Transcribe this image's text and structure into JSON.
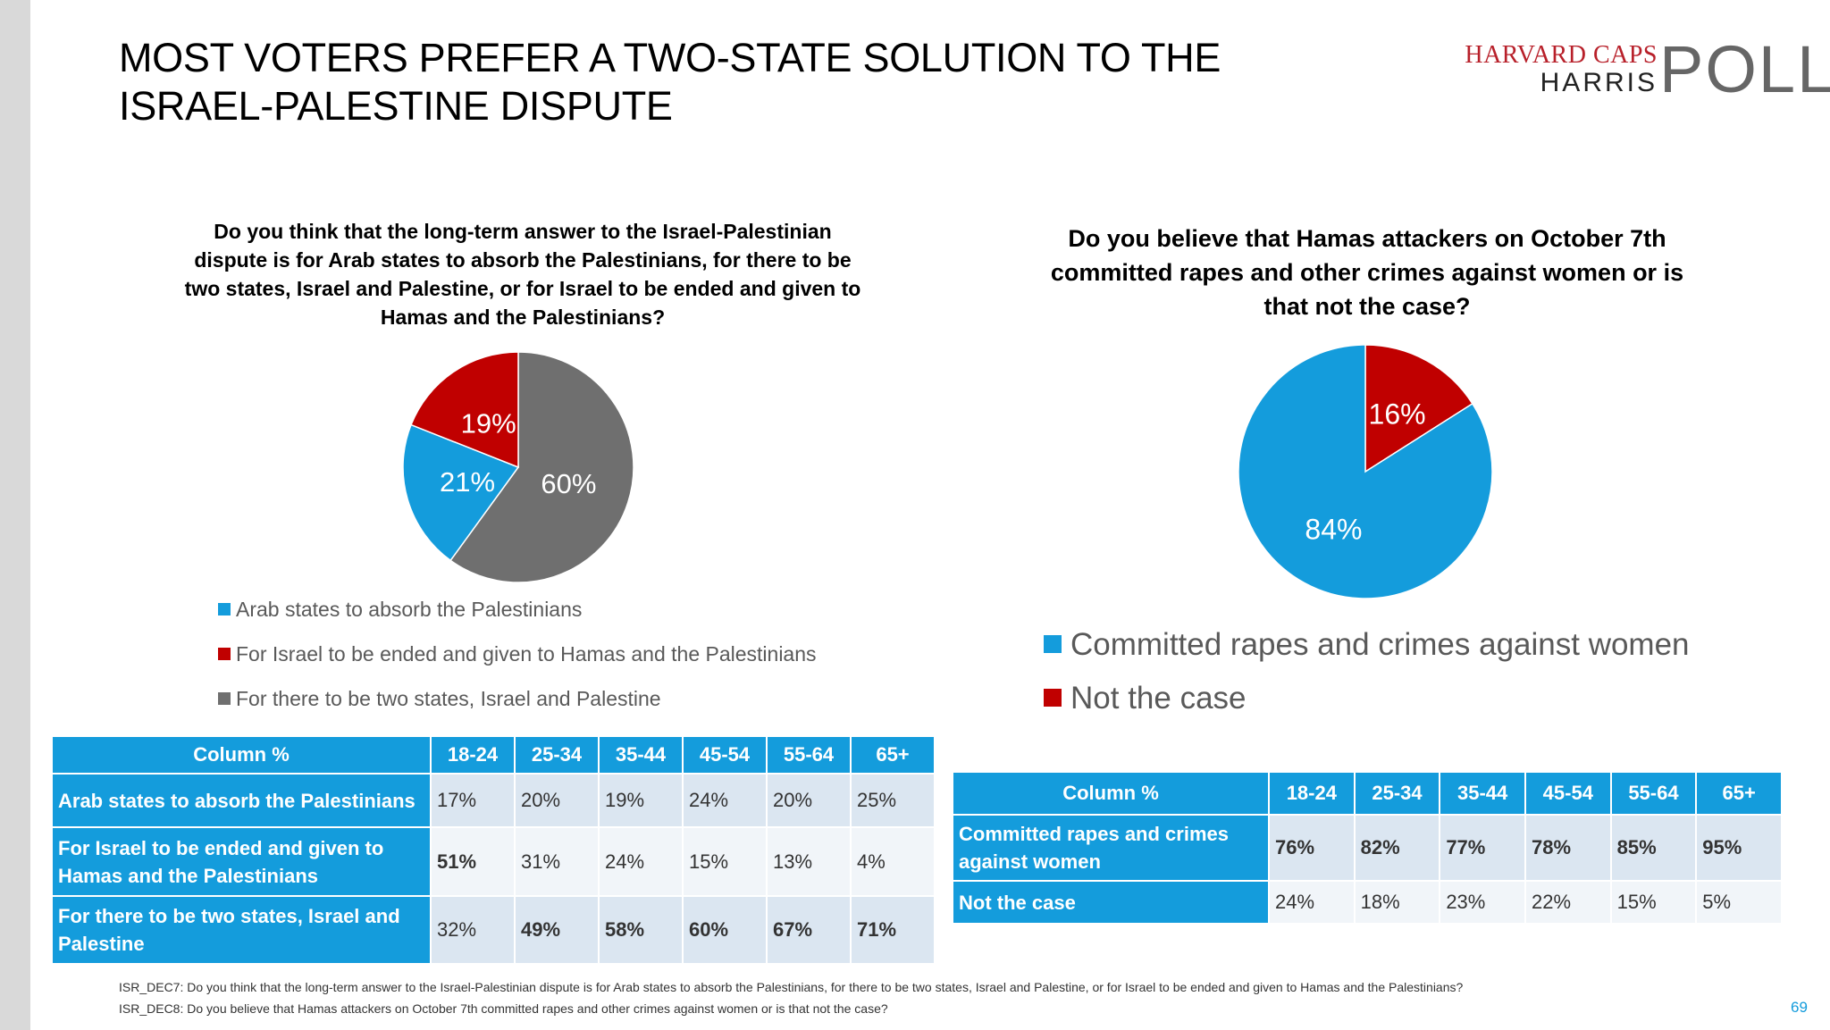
{
  "title": "MOST VOTERS PREFER A TWO-STATE SOLUTION TO THE ISRAEL-PALESTINE DISPUTE",
  "logo": {
    "line1": "HARVARD CAPS",
    "line2": "HARRIS",
    "line3": "POLL"
  },
  "colors": {
    "blue": "#149cdc",
    "red": "#c00000",
    "gray": "#6f6f6f"
  },
  "chart_data": [
    {
      "type": "pie",
      "title": "Do you think that the long-term answer to the Israel-Palestinian dispute is for Arab states to absorb the Palestinians, for there to be two states, Israel and Palestine, or for Israel to be ended and given to Hamas and the Palestinians?",
      "legend_position": "bottom",
      "slices": [
        {
          "label": "For there to be two states, Israel and Palestine",
          "value": 60,
          "display": "60%",
          "color": "#6f6f6f"
        },
        {
          "label": "Arab states to absorb the Palestinians",
          "value": 21,
          "display": "21%",
          "color": "#149cdc"
        },
        {
          "label": "For Israel to be ended and given to Hamas and the Palestinians",
          "value": 19,
          "display": "19%",
          "color": "#c00000"
        }
      ],
      "legend": [
        {
          "label": "Arab states to absorb the Palestinians",
          "color": "#149cdc"
        },
        {
          "label": "For Israel to be ended and given to Hamas and the Palestinians",
          "color": "#c00000"
        },
        {
          "label": "For there to be two states, Israel and Palestine",
          "color": "#6f6f6f"
        }
      ]
    },
    {
      "type": "pie",
      "title": "Do you believe that Hamas attackers on October 7th committed rapes and other crimes against women or is that not the case?",
      "legend_position": "bottom",
      "slices": [
        {
          "label": "Not the case",
          "value": 16,
          "display": "16%",
          "color": "#c00000"
        },
        {
          "label": "Committed rapes and crimes against women",
          "value": 84,
          "display": "84%",
          "color": "#149cdc"
        }
      ],
      "legend": [
        {
          "label": "Committed rapes and crimes against women",
          "color": "#149cdc"
        },
        {
          "label": "Not the case",
          "color": "#c00000"
        }
      ]
    },
    {
      "type": "table",
      "columns": [
        "Column %",
        "18-24",
        "25-34",
        "35-44",
        "45-54",
        "55-64",
        "65+"
      ],
      "rows": [
        {
          "label": "Arab states to absorb the Palestinians",
          "values": [
            "17%",
            "20%",
            "19%",
            "24%",
            "20%",
            "25%"
          ],
          "bold": [
            false,
            false,
            false,
            false,
            false,
            false
          ]
        },
        {
          "label": "For Israel to be ended and given to Hamas and the Palestinians",
          "values": [
            "51%",
            "31%",
            "24%",
            "15%",
            "13%",
            "4%"
          ],
          "bold": [
            true,
            false,
            false,
            false,
            false,
            false
          ]
        },
        {
          "label": "For there to be two states, Israel and Palestine",
          "values": [
            "32%",
            "49%",
            "58%",
            "60%",
            "67%",
            "71%"
          ],
          "bold": [
            false,
            true,
            true,
            true,
            true,
            true
          ]
        }
      ]
    },
    {
      "type": "table",
      "columns": [
        "Column %",
        "18-24",
        "25-34",
        "35-44",
        "45-54",
        "55-64",
        "65+"
      ],
      "rows": [
        {
          "label": "Committed rapes and crimes against women",
          "values": [
            "76%",
            "82%",
            "77%",
            "78%",
            "85%",
            "95%"
          ],
          "bold": [
            true,
            true,
            true,
            true,
            true,
            true
          ]
        },
        {
          "label": "Not the case",
          "values": [
            "24%",
            "18%",
            "23%",
            "22%",
            "15%",
            "5%"
          ],
          "bold": [
            false,
            false,
            false,
            false,
            false,
            false
          ]
        }
      ]
    }
  ],
  "footnotes": [
    "ISR_DEC7: Do you think that the long-term answer to the Israel-Palestinian dispute is for Arab states to absorb the Palestinians, for there to be two states, Israel and Palestine, or for Israel to be ended and given to Hamas and the Palestinians?",
    "ISR_DEC8: Do you believe that Hamas attackers on October 7th committed rapes and other crimes against women or is that not the case?"
  ],
  "page_number": "69"
}
